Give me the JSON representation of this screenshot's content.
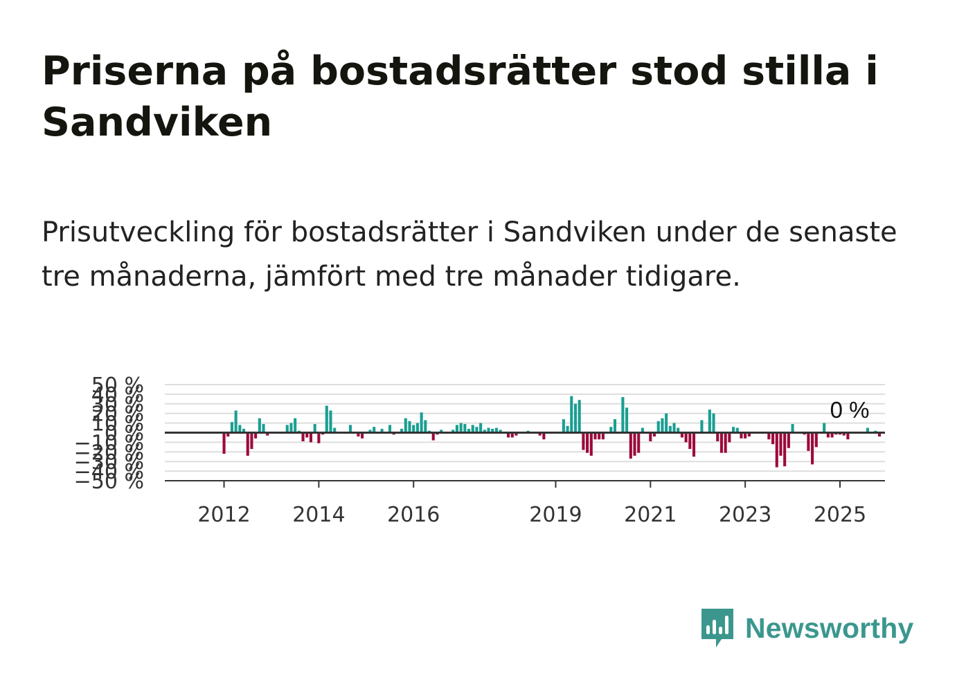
{
  "title": "Priserna på bostadsrätter stod stilla i Sandviken",
  "subtitle": "Prisutveckling för bostadsrätter i Sandviken under de senaste tre månaderna, jämfört med tre månader tidigare.",
  "brand": {
    "name": "Newsworthy",
    "icon": "newsworthy-logo-icon"
  },
  "colors": {
    "positive": "#1a9e92",
    "negative": "#9c0a3c",
    "grid": "#dddddd",
    "zero_line": "#333333",
    "brand": "#3b978e"
  },
  "chart_data": {
    "type": "bar",
    "ylabel": "",
    "xlabel": "",
    "ylim": [
      -50,
      50
    ],
    "y_ticks": [
      "50 %",
      "40 %",
      "30 %",
      "20 %",
      "10 %",
      "0 %",
      "−10 %",
      "−20 %",
      "−30 %",
      "−40 %",
      "−50 %"
    ],
    "y_tick_values": [
      50,
      40,
      30,
      20,
      10,
      0,
      -10,
      -20,
      -30,
      -40,
      -50
    ],
    "x_ticks": [
      "2012",
      "2014",
      "2016",
      "2019",
      "2021",
      "2023",
      "2025"
    ],
    "x_tick_values": [
      2012.0,
      2014.0,
      2016.0,
      2019.0,
      2021.0,
      2023.0,
      2025.0
    ],
    "xlim": [
      2010.75,
      2025.95
    ],
    "last_value_label": "0 %",
    "grid": true,
    "start": "2012-01",
    "frequency": "monthly",
    "values": [
      -22,
      -4,
      11,
      23,
      8,
      4,
      -24,
      -17,
      -6,
      15,
      9,
      -3,
      0,
      0,
      0,
      0,
      8,
      10,
      15,
      2,
      -9,
      -5,
      -10,
      9,
      -11,
      -2,
      28,
      23,
      5,
      0,
      0,
      0,
      8,
      0,
      -4,
      -6,
      0,
      3,
      6,
      0,
      4,
      0,
      8,
      -2,
      0,
      4,
      15,
      12,
      8,
      10,
      21,
      13,
      2,
      -8,
      -2,
      3,
      0,
      0,
      3,
      8,
      10,
      9,
      4,
      8,
      6,
      10,
      3,
      5,
      4,
      5,
      3,
      1,
      -5,
      -5,
      -3,
      0,
      0,
      2,
      0,
      0,
      -3,
      -7,
      0,
      0,
      0,
      0,
      14,
      7,
      38,
      30,
      34,
      -18,
      -21,
      -24,
      -7,
      -7,
      -7,
      0,
      6,
      14,
      0,
      37,
      26,
      -27,
      -24,
      -21,
      5,
      0,
      -9,
      -4,
      12,
      15,
      20,
      7,
      10,
      5,
      -5,
      -10,
      -17,
      -25,
      0,
      13,
      0,
      24,
      20,
      -9,
      -21,
      -21,
      -10,
      6,
      5,
      -6,
      -6,
      -4,
      0,
      0,
      0,
      0,
      -7,
      -12,
      -36,
      -24,
      -35,
      -16,
      9,
      0,
      0,
      -2,
      -19,
      -33,
      -15,
      0,
      10,
      -5,
      -5,
      -2,
      -2,
      -3,
      -7,
      0,
      0,
      0,
      0,
      5,
      0,
      2,
      -4,
      0
    ]
  }
}
